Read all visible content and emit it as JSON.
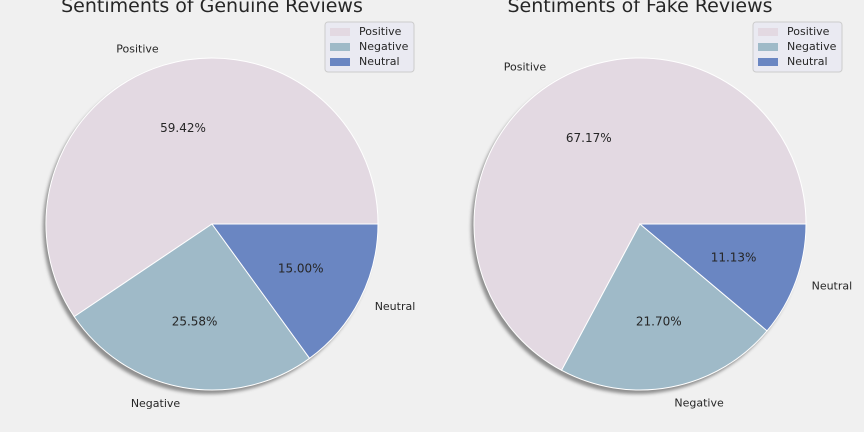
{
  "chart_data": [
    {
      "type": "pie",
      "title": "Sentiments of Genuine Reviews",
      "categories": [
        "Positive",
        "Negative",
        "Neutral"
      ],
      "values": [
        59.42,
        25.58,
        15.0
      ],
      "value_labels": [
        "59.42%",
        "25.58%",
        "15.00%"
      ],
      "colors": [
        "#e3d9e2",
        "#9fbac8",
        "#6a86c2"
      ],
      "legend": {
        "position": "top-right",
        "entries": [
          "Positive",
          "Negative",
          "Neutral"
        ]
      },
      "start_angle_deg": 0,
      "direction": "counterclockwise",
      "shadow": true
    },
    {
      "type": "pie",
      "title": "Sentiments of Fake Reviews",
      "categories": [
        "Positive",
        "Negative",
        "Neutral"
      ],
      "values": [
        67.17,
        21.7,
        11.13
      ],
      "value_labels": [
        "67.17%",
        "21.70%",
        "11.13%"
      ],
      "colors": [
        "#e3d9e2",
        "#9fbac8",
        "#6a86c2"
      ],
      "legend": {
        "position": "top-right",
        "entries": [
          "Positive",
          "Negative",
          "Neutral"
        ]
      },
      "start_angle_deg": 0,
      "direction": "counterclockwise",
      "shadow": true
    }
  ]
}
